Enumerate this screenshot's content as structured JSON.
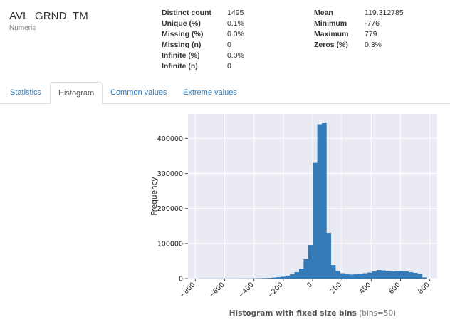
{
  "variable": {
    "name": "AVL_GRND_TM",
    "type": "Numeric"
  },
  "stats_left": [
    {
      "label": "Distinct count",
      "value": "1495"
    },
    {
      "label": "Unique (%)",
      "value": "0.1%"
    },
    {
      "label": "Missing (%)",
      "value": "0.0%"
    },
    {
      "label": "Missing (n)",
      "value": "0"
    },
    {
      "label": "Infinite (%)",
      "value": "0.0%"
    },
    {
      "label": "Infinite (n)",
      "value": "0"
    }
  ],
  "stats_right": [
    {
      "label": "Mean",
      "value": "119.312785"
    },
    {
      "label": "Minimum",
      "value": "-776"
    },
    {
      "label": "Maximum",
      "value": "779"
    },
    {
      "label": "Zeros (%)",
      "value": "0.3%"
    }
  ],
  "tabs": [
    {
      "label": "Statistics",
      "active": false
    },
    {
      "label": "Histogram",
      "active": true
    },
    {
      "label": "Common values",
      "active": false
    },
    {
      "label": "Extreme values",
      "active": false
    }
  ],
  "chart_data": {
    "type": "bar",
    "title": "",
    "xlabel": "Histogram with fixed size bins",
    "xlabel_note": "(bins=50)",
    "ylabel": "Frequency",
    "xlim": [
      -850,
      850
    ],
    "ylim": [
      0,
      470000
    ],
    "xticks": [
      -800,
      -600,
      -400,
      -200,
      0,
      200,
      400,
      600,
      800
    ],
    "yticks": [
      0,
      100000,
      200000,
      300000,
      400000
    ],
    "xtick_labels": [
      "−800",
      "−600",
      "−400",
      "−200",
      "0",
      "200",
      "400",
      "600",
      "800"
    ],
    "ytick_labels": [
      "0",
      "100000",
      "200000",
      "300000",
      "400000"
    ],
    "grid": true,
    "bar_color": "#337ab7",
    "background_color": "#eaeaf2",
    "bin_start": -776,
    "bin_width": 31.1,
    "values": [
      10,
      10,
      20,
      20,
      30,
      30,
      40,
      50,
      60,
      80,
      100,
      150,
      300,
      500,
      1000,
      1500,
      2500,
      3500,
      5000,
      8000,
      12000,
      18000,
      28000,
      55000,
      95000,
      330000,
      440000,
      445000,
      130000,
      38000,
      22000,
      15000,
      12000,
      11000,
      12000,
      13000,
      15000,
      17000,
      20000,
      24000,
      23000,
      21000,
      20000,
      21000,
      22000,
      20000,
      18000,
      16000,
      13000,
      3000
    ]
  }
}
